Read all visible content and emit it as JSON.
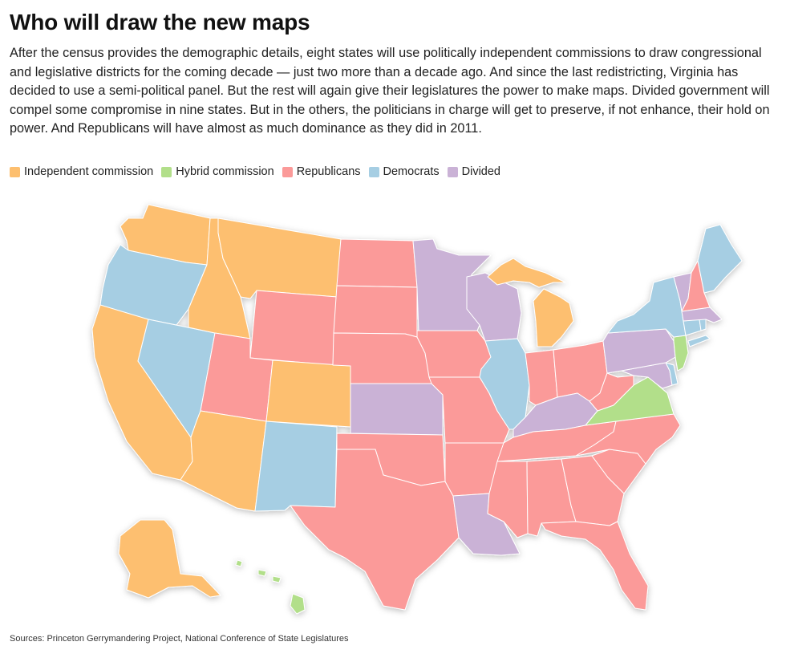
{
  "title": "Who will draw the new maps",
  "intro": "After the census provides the demographic details, eight states will use politically independent commissions to draw congressional and legislative districts for the coming decade — just two more than a decade ago. And since the last redistricting, Virginia has decided to use a semi-political panel. But the rest will again give their legislatures the power to make maps. Divided government will compel some compromise in nine states. But in the others, the politicians in charge will get to preserve, if not enhance, their hold on power. And Republicans will have almost as much dominance as they did in 2011.",
  "legend": [
    {
      "key": "independent",
      "label": "Independent commission",
      "color": "#fdbf6f"
    },
    {
      "key": "hybrid",
      "label": "Hybrid commission",
      "color": "#b2df8a"
    },
    {
      "key": "republican",
      "label": "Republicans",
      "color": "#fb9a99"
    },
    {
      "key": "democrat",
      "label": "Democrats",
      "color": "#a6cee3"
    },
    {
      "key": "divided",
      "label": "Divided",
      "color": "#cab2d6"
    }
  ],
  "source": "Sources: Princeton Gerrymandering Project, National Conference of State Legislatures",
  "states": [
    {
      "id": "WA",
      "category": "independent"
    },
    {
      "id": "OR",
      "category": "democrat"
    },
    {
      "id": "CA",
      "category": "independent"
    },
    {
      "id": "NV",
      "category": "democrat"
    },
    {
      "id": "ID",
      "category": "independent"
    },
    {
      "id": "MT",
      "category": "independent"
    },
    {
      "id": "WY",
      "category": "republican"
    },
    {
      "id": "UT",
      "category": "republican"
    },
    {
      "id": "AZ",
      "category": "independent"
    },
    {
      "id": "CO",
      "category": "independent"
    },
    {
      "id": "NM",
      "category": "democrat"
    },
    {
      "id": "ND",
      "category": "republican"
    },
    {
      "id": "SD",
      "category": "republican"
    },
    {
      "id": "NE",
      "category": "republican"
    },
    {
      "id": "KS",
      "category": "divided"
    },
    {
      "id": "OK",
      "category": "republican"
    },
    {
      "id": "TX",
      "category": "republican"
    },
    {
      "id": "MN",
      "category": "divided"
    },
    {
      "id": "IA",
      "category": "republican"
    },
    {
      "id": "MO",
      "category": "republican"
    },
    {
      "id": "AR",
      "category": "republican"
    },
    {
      "id": "LA",
      "category": "divided"
    },
    {
      "id": "WI",
      "category": "divided"
    },
    {
      "id": "IL",
      "category": "democrat"
    },
    {
      "id": "MI",
      "category": "independent"
    },
    {
      "id": "IN",
      "category": "republican"
    },
    {
      "id": "OH",
      "category": "republican"
    },
    {
      "id": "KY",
      "category": "divided"
    },
    {
      "id": "TN",
      "category": "republican"
    },
    {
      "id": "MS",
      "category": "republican"
    },
    {
      "id": "AL",
      "category": "republican"
    },
    {
      "id": "GA",
      "category": "republican"
    },
    {
      "id": "FL",
      "category": "republican"
    },
    {
      "id": "SC",
      "category": "republican"
    },
    {
      "id": "NC",
      "category": "republican"
    },
    {
      "id": "VA",
      "category": "hybrid"
    },
    {
      "id": "WV",
      "category": "republican"
    },
    {
      "id": "MD",
      "category": "divided"
    },
    {
      "id": "DE",
      "category": "democrat"
    },
    {
      "id": "PA",
      "category": "divided"
    },
    {
      "id": "NJ",
      "category": "hybrid"
    },
    {
      "id": "NY",
      "category": "democrat"
    },
    {
      "id": "CT",
      "category": "democrat"
    },
    {
      "id": "RI",
      "category": "democrat"
    },
    {
      "id": "MA",
      "category": "divided"
    },
    {
      "id": "VT",
      "category": "divided"
    },
    {
      "id": "NH",
      "category": "republican"
    },
    {
      "id": "ME",
      "category": "democrat"
    },
    {
      "id": "AK",
      "category": "independent"
    },
    {
      "id": "HI",
      "category": "hybrid"
    }
  ]
}
